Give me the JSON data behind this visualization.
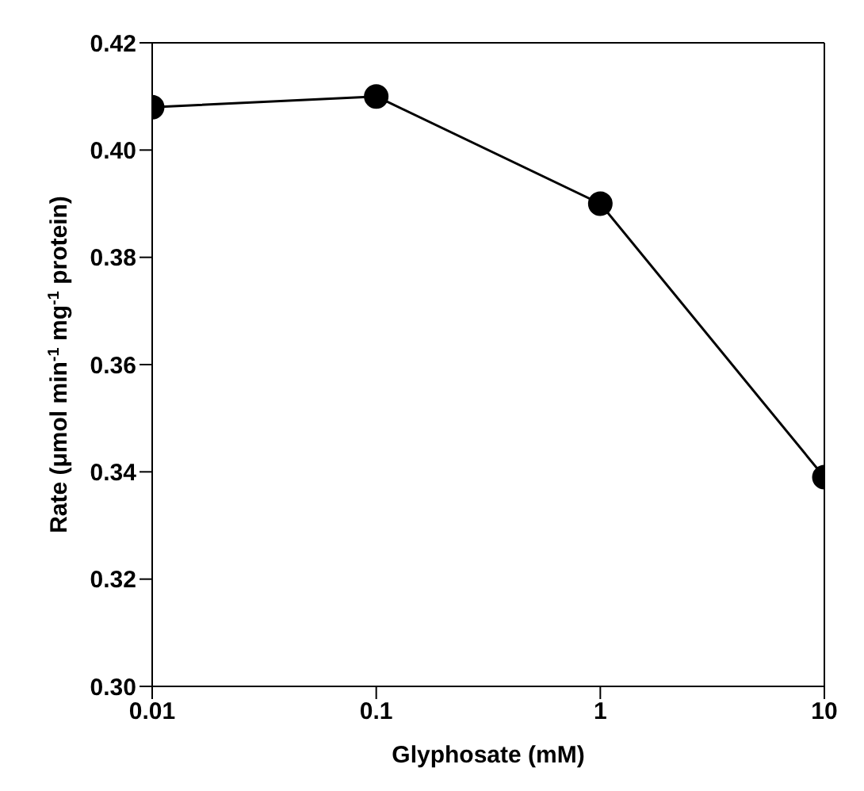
{
  "chart_data": {
    "type": "line",
    "xlabel": "Glyphosate (mM)",
    "ylabel": "Rate (μmol min$^{-1}$ mg$^{-1}$ protein)",
    "x": [
      0.01,
      0.1,
      1,
      10
    ],
    "series": [
      {
        "color": "#000000",
        "values": [
          0.408,
          0.41,
          0.39,
          0.339
        ]
      }
    ],
    "log": "x",
    "xlim": [
      0.01,
      10
    ],
    "xticks": [
      0.01,
      0.1,
      1,
      10
    ],
    "ylim": [
      0.3,
      0.42
    ],
    "yticks": [
      {
        "value": 0.3,
        "label": "0.30"
      },
      {
        "value": 0.32,
        "label": "0.32"
      },
      {
        "value": 0.34,
        "label": "0.34"
      },
      {
        "value": 0.36,
        "label": "0.36"
      },
      {
        "value": 0.38,
        "label": "0.38"
      },
      {
        "value": 0.4,
        "label": "0.40"
      },
      {
        "value": 0.42,
        "label": "0.42"
      }
    ],
    "marker": "circle",
    "line_style": "solid",
    "grid": false,
    "legend": false
  }
}
